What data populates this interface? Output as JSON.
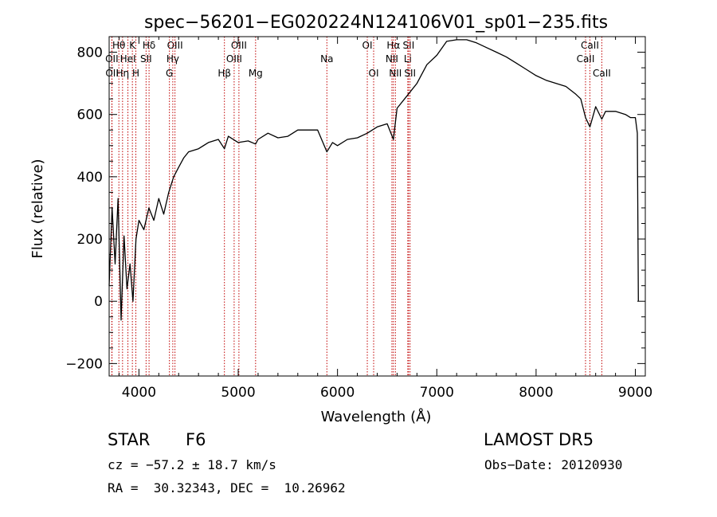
{
  "chart_data": {
    "type": "line",
    "title": "spec−56201−EG020224N124106V01_sp01−235.fits",
    "xlabel": "Wavelength (Å)",
    "ylabel": "Flux (relative)",
    "xlim": [
      3700,
      9100
    ],
    "ylim": [
      -240,
      850
    ],
    "xticks": [
      4000,
      5000,
      6000,
      7000,
      8000,
      9000
    ],
    "yticks": [
      -200,
      0,
      200,
      400,
      600,
      800
    ],
    "ytick_labels": [
      "−200",
      "0",
      "200",
      "400",
      "600",
      "800"
    ],
    "grid": false,
    "series": [
      {
        "x": [
          3700,
          3730,
          3760,
          3790,
          3820,
          3850,
          3880,
          3910,
          3940,
          3970,
          4000,
          4050,
          4100,
          4150,
          4200,
          4250,
          4300,
          4350,
          4400,
          4450,
          4500,
          4600,
          4700,
          4800,
          4861,
          4900,
          5000,
          5100,
          5175,
          5200,
          5300,
          5400,
          5500,
          5600,
          5700,
          5800,
          5893,
          5950,
          6000,
          6100,
          6200,
          6300,
          6400,
          6500,
          6563,
          6600,
          6700,
          6800,
          6900,
          7000,
          7100,
          7200,
          7300,
          7400,
          7500,
          7600,
          7700,
          7800,
          7900,
          8000,
          8100,
          8200,
          8300,
          8400,
          8450,
          8498,
          8542,
          8600,
          8662,
          8700,
          8800,
          8900,
          8950,
          9000,
          9020,
          9030
        ],
        "y": [
          50,
          300,
          120,
          330,
          -60,
          210,
          40,
          120,
          0,
          200,
          260,
          230,
          300,
          260,
          330,
          280,
          350,
          400,
          430,
          460,
          480,
          490,
          510,
          520,
          490,
          530,
          510,
          515,
          505,
          520,
          540,
          525,
          530,
          550,
          550,
          550,
          480,
          510,
          500,
          520,
          525,
          540,
          560,
          570,
          520,
          620,
          660,
          700,
          760,
          790,
          835,
          840,
          840,
          830,
          815,
          800,
          785,
          765,
          745,
          725,
          710,
          700,
          690,
          665,
          650,
          590,
          560,
          625,
          585,
          610,
          610,
          600,
          590,
          590,
          540,
          0
        ]
      }
    ],
    "lines": [
      {
        "label": "Hθ",
        "x": 3798,
        "row": 0
      },
      {
        "label": "OII",
        "x": 3727,
        "row": 1
      },
      {
        "label": "OII",
        "x": 3729,
        "row": 2
      },
      {
        "label": "K",
        "x": 3934,
        "row": 0
      },
      {
        "label": "HeI",
        "x": 3889,
        "row": 1
      },
      {
        "label": "Hη",
        "x": 3835,
        "row": 2
      },
      {
        "label": "H",
        "x": 3969,
        "row": 2
      },
      {
        "label": "Hδ",
        "x": 4102,
        "row": 0
      },
      {
        "label": "SII",
        "x": 4072,
        "row": 1
      },
      {
        "label": "OIII",
        "x": 4363,
        "row": 0
      },
      {
        "label": "Hγ",
        "x": 4341,
        "row": 1
      },
      {
        "label": "G",
        "x": 4307,
        "row": 2
      },
      {
        "label": "OIII",
        "x": 5007,
        "row": 0
      },
      {
        "label": "OIII",
        "x": 4959,
        "row": 1
      },
      {
        "label": "Hβ",
        "x": 4861,
        "row": 2
      },
      {
        "label": "Mg",
        "x": 5175,
        "row": 2
      },
      {
        "label": "Na",
        "x": 5893,
        "row": 1
      },
      {
        "label": "OI",
        "x": 6300,
        "row": 0
      },
      {
        "label": "OI",
        "x": 6364,
        "row": 2
      },
      {
        "label": "Hα",
        "x": 6563,
        "row": 0
      },
      {
        "label": "SII",
        "x": 6716,
        "row": 0
      },
      {
        "label": "NII",
        "x": 6548,
        "row": 1
      },
      {
        "label": "Li",
        "x": 6708,
        "row": 1
      },
      {
        "label": "NII",
        "x": 6583,
        "row": 2
      },
      {
        "label": "SII",
        "x": 6731,
        "row": 2
      },
      {
        "label": "CaII",
        "x": 8542,
        "row": 0
      },
      {
        "label": "CaII",
        "x": 8498,
        "row": 1
      },
      {
        "label": "CaII",
        "x": 8662,
        "row": 2
      }
    ]
  },
  "info": {
    "class": "STAR",
    "subclass": "F6",
    "survey": "LAMOST DR5",
    "cz": "cz = −57.2 ± 18.7 km/s",
    "obs_date": "Obs−Date: 20120930",
    "radec": "RA =  30.32343, DEC =  10.26962"
  }
}
